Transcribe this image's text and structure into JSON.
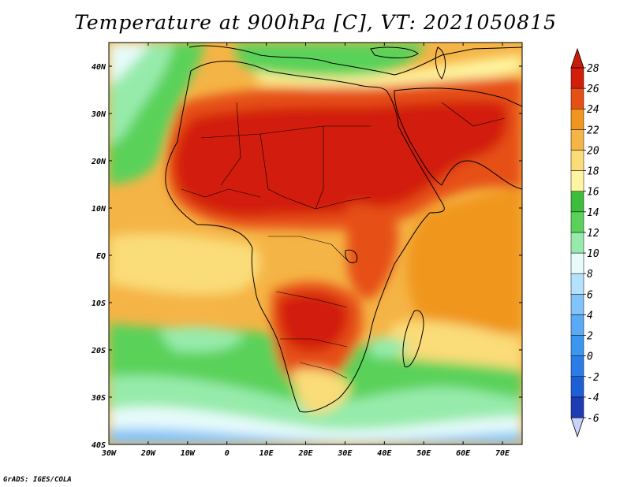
{
  "title": "Temperature at 900hPa [C], VT: 2021050815",
  "credit": "GrADS: IGES/COLA",
  "map": {
    "lon_range": [
      -30,
      75
    ],
    "lat_range": [
      -40,
      45
    ],
    "lon_ticks": [
      {
        "value": -30,
        "label": "30W"
      },
      {
        "value": -20,
        "label": "20W"
      },
      {
        "value": -10,
        "label": "10W"
      },
      {
        "value": 0,
        "label": "0"
      },
      {
        "value": 10,
        "label": "10E"
      },
      {
        "value": 20,
        "label": "20E"
      },
      {
        "value": 30,
        "label": "30E"
      },
      {
        "value": 40,
        "label": "40E"
      },
      {
        "value": 50,
        "label": "50E"
      },
      {
        "value": 60,
        "label": "60E"
      },
      {
        "value": 70,
        "label": "70E"
      }
    ],
    "lat_ticks": [
      {
        "value": 40,
        "label": "40N"
      },
      {
        "value": 30,
        "label": "30N"
      },
      {
        "value": 20,
        "label": "20N"
      },
      {
        "value": 10,
        "label": "10N"
      },
      {
        "value": 0,
        "label": "EQ"
      },
      {
        "value": -10,
        "label": "10S"
      },
      {
        "value": -20,
        "label": "20S"
      },
      {
        "value": -30,
        "label": "30S"
      },
      {
        "value": -40,
        "label": "40S"
      }
    ]
  },
  "colorbar": {
    "levels": [
      -6,
      -4,
      -2,
      0,
      2,
      4,
      6,
      8,
      10,
      12,
      14,
      16,
      18,
      20,
      22,
      24,
      26,
      28
    ],
    "labels": [
      "-6",
      "-4",
      "-2",
      "0",
      "2",
      "4",
      "6",
      "8",
      "10",
      "12",
      "14",
      "16",
      "18",
      "20",
      "22",
      "24",
      "26",
      "28"
    ],
    "colors": [
      "#1a0f6e",
      "#1e3cb4",
      "#1f5fd6",
      "#2a7de6",
      "#3c96f0",
      "#5aaaf5",
      "#82c3fa",
      "#b4e1fc",
      "#e6fbfa",
      "#96ebaa",
      "#5ad25a",
      "#3cbe3c",
      "#fff5a0",
      "#fadc78",
      "#f5b446",
      "#f0961e",
      "#e65014",
      "#d21e0a"
    ],
    "under_color": "#c8d2fa",
    "over_color": "#c81e0a"
  }
}
